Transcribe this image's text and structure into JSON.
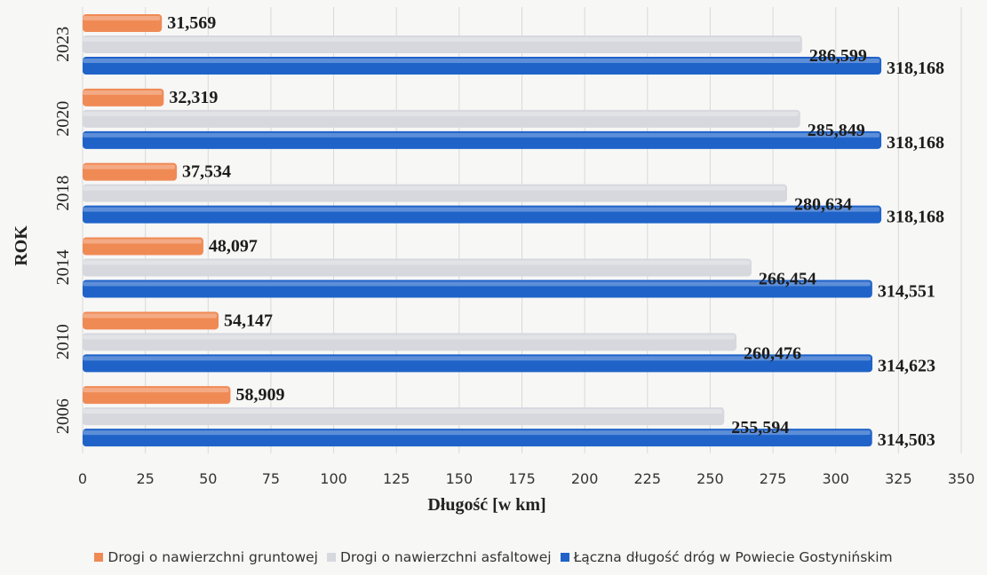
{
  "chart_data": {
    "type": "bar",
    "orientation": "horizontal",
    "categories": [
      "2006",
      "2010",
      "2014",
      "2018",
      "2020",
      "2023"
    ],
    "series": [
      {
        "name": "Drogi o nawierzchni gruntowej",
        "values": [
          58.909,
          54.147,
          48.097,
          37.534,
          32.319,
          31.569
        ],
        "labels": [
          "58,909",
          "54,147",
          "48,097",
          "37,534",
          "32,319",
          "31,569"
        ],
        "color": "#f08a55"
      },
      {
        "name": "Drogi o nawierzchni asfaltowej",
        "values": [
          255.594,
          260.476,
          266.454,
          280.634,
          285.849,
          286.599
        ],
        "labels": [
          "255,594",
          "260,476",
          "266,454",
          "280,634",
          "285,849",
          "286,599"
        ],
        "color": "#d6d8de"
      },
      {
        "name": "Łączna długość dróg w Powiecie Gostynińskim",
        "values": [
          314.503,
          314.623,
          314.551,
          318.168,
          318.168,
          318.168
        ],
        "labels": [
          "314,503",
          "314,623",
          "314,551",
          "318,168",
          "318,168",
          "318,168"
        ],
        "color": "#1f63c9"
      }
    ],
    "xlabel": "Długość [w km]",
    "ylabel": "ROK",
    "xlim": [
      0,
      350
    ],
    "xticks": [
      0,
      25,
      50,
      75,
      100,
      125,
      150,
      175,
      200,
      225,
      250,
      275,
      300,
      325,
      350
    ],
    "grid": true,
    "legend_position": "bottom"
  }
}
